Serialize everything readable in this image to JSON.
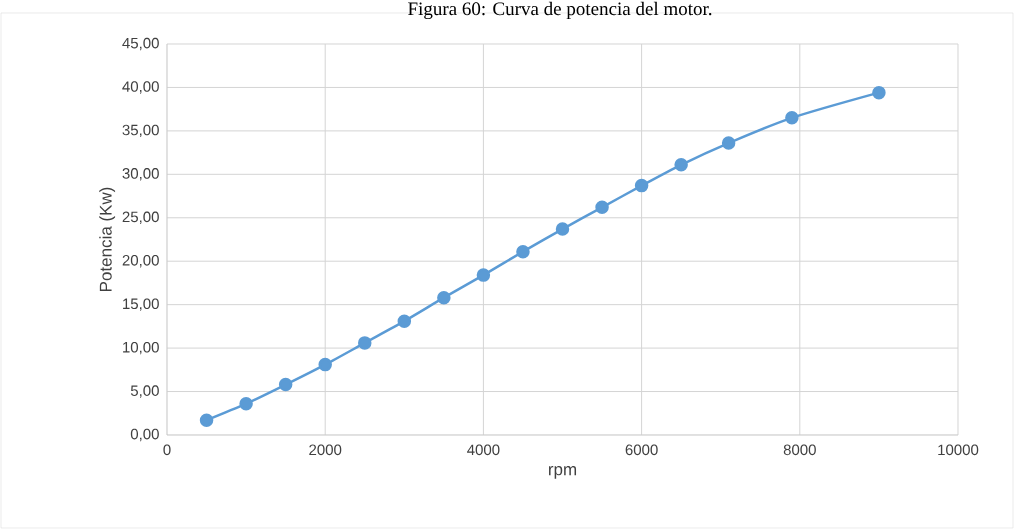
{
  "chart_data": {
    "type": "line",
    "title": "Figura 60: Curva de potencia del motor.",
    "xlabel": "rpm",
    "ylabel": "Potencia (Kw)",
    "x": [
      500,
      1000,
      1500,
      2000,
      2500,
      3000,
      3500,
      4000,
      4500,
      5000,
      5500,
      6000,
      6500,
      7100,
      7900,
      9000
    ],
    "series": [
      {
        "color": "#5b9bd5",
        "values": [
          1.7,
          3.6,
          5.8,
          8.1,
          10.6,
          13.1,
          15.8,
          18.4,
          21.1,
          23.7,
          26.2,
          28.7,
          31.1,
          33.6,
          36.5,
          39.4
        ]
      }
    ],
    "xlim": [
      0,
      10000
    ],
    "xticks": [
      0,
      2000,
      4000,
      6000,
      8000,
      10000
    ],
    "ylim": [
      0,
      45
    ],
    "yticks": [
      {
        "value": 0,
        "label": "0,00"
      },
      {
        "value": 5,
        "label": "5,00"
      },
      {
        "value": 10,
        "label": "10,00"
      },
      {
        "value": 15,
        "label": "15,00"
      },
      {
        "value": 20,
        "label": "20,00"
      },
      {
        "value": 25,
        "label": "25,00"
      },
      {
        "value": 30,
        "label": "30,00"
      },
      {
        "value": 35,
        "label": "35,00"
      },
      {
        "value": 40,
        "label": "40,00"
      },
      {
        "value": 45,
        "label": "45,00"
      }
    ],
    "grid": true,
    "marker": "circle",
    "line_style": "solid"
  }
}
